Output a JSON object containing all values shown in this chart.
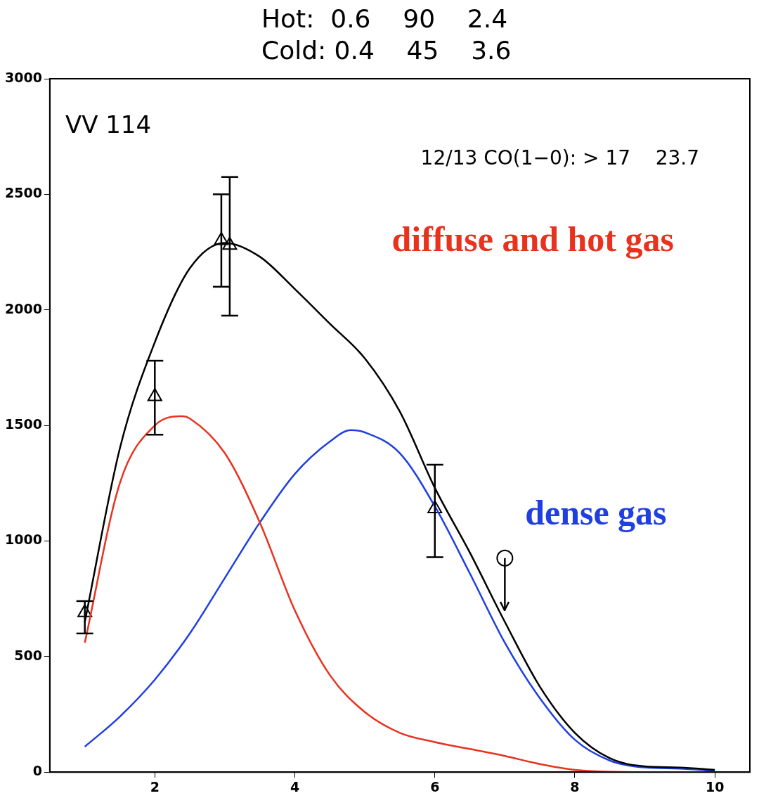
{
  "chart_data": {
    "type": "line",
    "annotations": [
      "Hot:  0.6    90    2.4",
      "Cold: 0.4    45    3.6",
      "VV 114",
      "12/13 CO(1−0): > 17    23.7"
    ],
    "xlim": [
      0.5,
      10.5
    ],
    "xticks": [
      2,
      4,
      6,
      8,
      10
    ],
    "ylim": [
      0,
      3000
    ],
    "yticks": [
      0,
      500,
      1000,
      1500,
      2000,
      2500,
      3000
    ],
    "grid": false,
    "legend": false,
    "series": [
      {
        "type": "line",
        "color": "#000000",
        "marker": "none",
        "x": [
          1,
          1.5,
          2,
          2.5,
          3,
          3.5,
          4,
          4.5,
          5,
          5.5,
          6,
          6.5,
          7,
          7.5,
          8,
          8.5,
          9,
          9.5,
          10
        ],
        "values": [
          650,
          1400,
          1860,
          2180,
          2290,
          2230,
          2090,
          1940,
          1790,
          1560,
          1230,
          950,
          650,
          370,
          170,
          60,
          25,
          20,
          10
        ]
      },
      {
        "type": "line",
        "name": "diffuse and hot gas",
        "color": "#e8321e",
        "marker": "none",
        "x": [
          1,
          1.5,
          2,
          2.4,
          2.5,
          3,
          3.5,
          4,
          4.5,
          5,
          5.5,
          6,
          6.5,
          7,
          7.5,
          8,
          9,
          10
        ],
        "values": [
          560,
          1250,
          1500,
          1540,
          1530,
          1380,
          1080,
          700,
          420,
          260,
          170,
          130,
          100,
          70,
          35,
          10,
          0,
          0
        ]
      },
      {
        "type": "line",
        "name": "dense gas",
        "color": "#1f3fe0",
        "marker": "none",
        "x": [
          1,
          1.5,
          2,
          2.5,
          3,
          3.5,
          4,
          4.5,
          4.8,
          5,
          5.5,
          6,
          6.5,
          7,
          7.5,
          8,
          8.5,
          9,
          9.5,
          10
        ],
        "values": [
          110,
          240,
          400,
          600,
          840,
          1080,
          1290,
          1430,
          1480,
          1470,
          1380,
          1150,
          860,
          560,
          320,
          140,
          50,
          20,
          15,
          5
        ]
      },
      {
        "type": "scatter",
        "color": "#000000",
        "marker": "triangle",
        "x": [
          1,
          2,
          2.95,
          3.07,
          6
        ],
        "values": [
          690,
          1625,
          2300,
          2280,
          1140
        ],
        "errors": [
          [
            600,
            740
          ],
          [
            1460,
            1780
          ],
          [
            2100,
            2500
          ],
          [
            1975,
            2575
          ],
          [
            930,
            1330
          ]
        ]
      },
      {
        "type": "scatter",
        "color": "#000000",
        "marker": "circle",
        "x": [
          7
        ],
        "values": [
          926
        ],
        "errors": [
          [
            700,
            926
          ]
        ]
      }
    ]
  }
}
